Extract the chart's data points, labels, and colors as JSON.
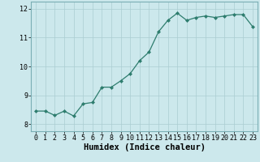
{
  "title": "",
  "xlabel": "Humidex (Indice chaleur)",
  "ylabel": "",
  "x": [
    0,
    1,
    2,
    3,
    4,
    5,
    6,
    7,
    8,
    9,
    10,
    11,
    12,
    13,
    14,
    15,
    16,
    17,
    18,
    19,
    20,
    21,
    22,
    23
  ],
  "y": [
    8.45,
    8.45,
    8.3,
    8.45,
    8.28,
    8.7,
    8.75,
    9.28,
    9.28,
    9.5,
    9.75,
    10.2,
    10.5,
    11.2,
    11.6,
    11.85,
    11.6,
    11.7,
    11.75,
    11.7,
    11.75,
    11.8,
    11.8,
    11.38
  ],
  "ylim": [
    7.75,
    12.25
  ],
  "xlim": [
    -0.5,
    23.5
  ],
  "yticks": [
    8,
    9,
    10,
    11,
    12
  ],
  "xticks": [
    0,
    1,
    2,
    3,
    4,
    5,
    6,
    7,
    8,
    9,
    10,
    11,
    12,
    13,
    14,
    15,
    16,
    17,
    18,
    19,
    20,
    21,
    22,
    23
  ],
  "line_color": "#2e7d6e",
  "marker": "D",
  "marker_size": 2.0,
  "line_width": 0.9,
  "bg_color": "#cce8ec",
  "grid_color": "#aacdd2",
  "tick_fontsize": 6.0,
  "label_fontsize": 7.5,
  "spine_color": "#7aafb5"
}
